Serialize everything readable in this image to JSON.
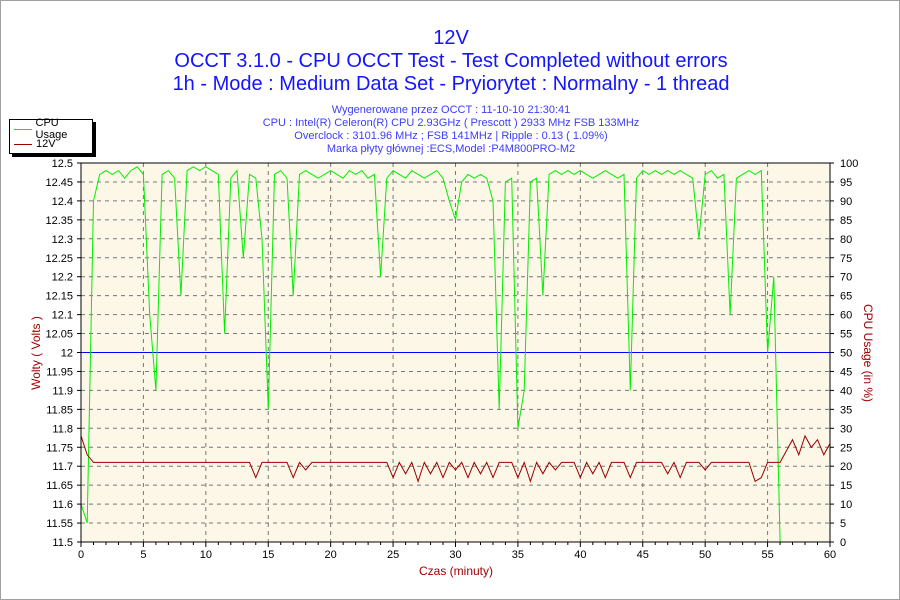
{
  "chart_data": {
    "type": "line",
    "title": "12V",
    "subtitle": [
      "OCCT 3.1.0 - CPU OCCT Test - Test Completed without errors",
      "1h - Mode : Medium Data Set - Pryiorytet : Normalny - 1 thread"
    ],
    "info": [
      "Wygenerowane przez OCCT : 11-10-10 21:30:41",
      "CPU : Intel(R) Celeron(R) CPU 2.93GHz ( Prescott ) 2933 MHz FSB 133MHz",
      "Overclock : 3101.96 MHz ; FSB 141MHz | Ripple : 0.13 ( 1.09%)",
      "Marka płyty głównej :ECS,Model :P4M800PRO-M2"
    ],
    "xlabel": "Czas (minuty)",
    "ylabel": "Wolty ( Volts )",
    "y2label": "CPU Usage (in %)",
    "xlim": [
      0,
      60
    ],
    "ylim": [
      11.5,
      12.5
    ],
    "y2lim": [
      0,
      100
    ],
    "xticks": [
      "0",
      "5",
      "10",
      "15",
      "20",
      "25",
      "30",
      "35",
      "40",
      "45",
      "50",
      "55",
      "60"
    ],
    "yticks": [
      "11.5",
      "11.55",
      "11.6",
      "11.65",
      "11.7",
      "11.75",
      "11.8",
      "11.85",
      "11.9",
      "11.95",
      "12",
      "12.05",
      "12.1",
      "12.15",
      "12.2",
      "12.25",
      "12.3",
      "12.35",
      "12.4",
      "12.45",
      "12.5"
    ],
    "y2ticks": [
      "0",
      "5",
      "10",
      "15",
      "20",
      "25",
      "30",
      "35",
      "40",
      "45",
      "50",
      "55",
      "60",
      "65",
      "70",
      "75",
      "80",
      "85",
      "90",
      "95",
      "100"
    ],
    "grid": true,
    "legend": {
      "placement": "top-left",
      "entries": [
        "CPU Usage",
        "12V"
      ]
    },
    "reference_line": {
      "value": 12,
      "color": "#0000ff"
    },
    "x_start": 0,
    "x_step": 0.5,
    "series": [
      {
        "name": "CPU Usage",
        "axis": "right",
        "color": "#00ee00",
        "values": [
          10,
          5,
          90,
          97,
          98,
          97,
          98,
          96,
          98,
          99,
          97,
          60,
          40,
          97,
          98,
          96,
          65,
          98,
          99,
          98,
          99,
          98,
          97,
          55,
          96,
          98,
          75,
          97,
          96,
          80,
          35,
          97,
          98,
          96,
          65,
          97,
          98,
          97,
          96,
          97,
          98,
          97,
          96,
          98,
          97,
          98,
          96,
          97,
          70,
          96,
          98,
          97,
          96,
          98,
          97,
          96,
          97,
          98,
          96,
          90,
          85,
          95,
          97,
          96,
          97,
          96,
          90,
          35,
          95,
          96,
          30,
          40,
          95,
          96,
          65,
          97,
          98,
          97,
          98,
          97,
          98,
          97,
          96,
          97,
          98,
          97,
          96,
          97,
          40,
          96,
          98,
          97,
          98,
          97,
          98,
          97,
          98,
          97,
          96,
          80,
          97,
          98,
          96,
          97,
          60,
          96,
          97,
          98,
          97,
          98,
          50,
          70,
          0,
          0,
          0,
          0,
          0,
          0,
          0,
          0,
          0
        ]
      },
      {
        "name": "12V",
        "axis": "left",
        "color": "#9b0000",
        "values": [
          11.78,
          11.73,
          11.71,
          11.71,
          11.71,
          11.71,
          11.71,
          11.71,
          11.71,
          11.71,
          11.71,
          11.71,
          11.71,
          11.71,
          11.71,
          11.71,
          11.71,
          11.71,
          11.71,
          11.71,
          11.71,
          11.71,
          11.71,
          11.71,
          11.71,
          11.71,
          11.71,
          11.71,
          11.67,
          11.71,
          11.71,
          11.71,
          11.71,
          11.71,
          11.67,
          11.71,
          11.69,
          11.71,
          11.71,
          11.71,
          11.71,
          11.71,
          11.71,
          11.71,
          11.71,
          11.71,
          11.71,
          11.71,
          11.71,
          11.71,
          11.67,
          11.71,
          11.68,
          11.71,
          11.66,
          11.71,
          11.68,
          11.71,
          11.67,
          11.71,
          11.69,
          11.71,
          11.67,
          11.71,
          11.68,
          11.71,
          11.67,
          11.71,
          11.71,
          11.71,
          11.67,
          11.71,
          11.66,
          11.71,
          11.68,
          11.71,
          11.69,
          11.71,
          11.71,
          11.71,
          11.67,
          11.71,
          11.68,
          11.71,
          11.67,
          11.71,
          11.71,
          11.71,
          11.67,
          11.71,
          11.71,
          11.71,
          11.71,
          11.71,
          11.68,
          11.71,
          11.67,
          11.71,
          11.71,
          11.71,
          11.69,
          11.71,
          11.71,
          11.71,
          11.71,
          11.71,
          11.71,
          11.71,
          11.66,
          11.67,
          11.71,
          11.71,
          11.71,
          11.74,
          11.77,
          11.73,
          11.78,
          11.75,
          11.77,
          11.73,
          11.76
        ]
      }
    ]
  }
}
